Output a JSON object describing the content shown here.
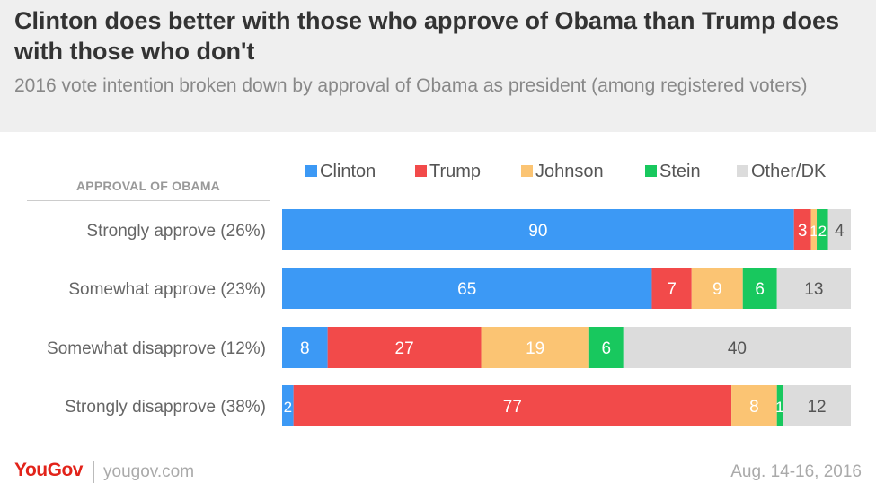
{
  "header": {
    "title": "Clinton does better with those who approve of Obama than Trump does with those who don't",
    "subtitle": "2016 vote intention broken down by approval of Obama as president (among registered voters)"
  },
  "colors": {
    "Clinton": "#3c99f5",
    "Trump": "#f24a4a",
    "Johnson": "#fbc473",
    "Stein": "#18c85e",
    "Other/DK": "#dcdcdc"
  },
  "chart_data": {
    "type": "bar",
    "orientation": "horizontal",
    "stacked": true,
    "y_axis_title": "APPROVAL OF OBAMA",
    "categories": [
      "Strongly approve (26%)",
      "Somewhat approve (23%)",
      "Somewhat disapprove (12%)",
      "Strongly disapprove (38%)"
    ],
    "series": [
      {
        "name": "Clinton",
        "values": [
          90,
          65,
          8,
          2
        ]
      },
      {
        "name": "Trump",
        "values": [
          3,
          7,
          27,
          77
        ]
      },
      {
        "name": "Johnson",
        "values": [
          1,
          9,
          19,
          8
        ]
      },
      {
        "name": "Stein",
        "values": [
          2,
          6,
          6,
          1
        ]
      },
      {
        "name": "Other/DK",
        "values": [
          4,
          13,
          40,
          12
        ]
      }
    ],
    "data_labels": [
      [
        "90",
        "3",
        "1",
        "2",
        "4"
      ],
      [
        "65",
        "7",
        "9",
        "6",
        "13"
      ],
      [
        "8",
        "27",
        "19",
        "6",
        "40"
      ],
      [
        "2",
        "77",
        "8",
        "1",
        "12"
      ]
    ],
    "legend_position": "top",
    "grid": false
  },
  "footer": {
    "brand": "YouGov",
    "site": "yougov.com",
    "date": "Aug. 14-16, 2016"
  }
}
